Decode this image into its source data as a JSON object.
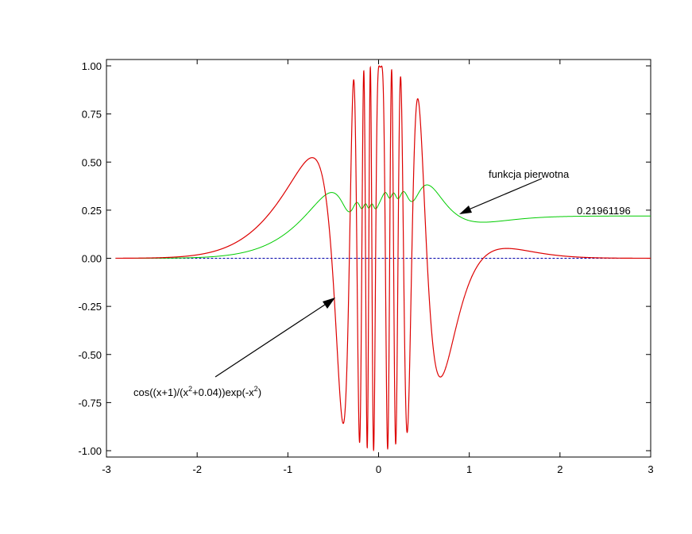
{
  "chart_data": {
    "type": "line",
    "title": "",
    "xlabel": "",
    "ylabel": "",
    "xlim": [
      -3,
      3
    ],
    "ylim": [
      -1.0,
      1.0
    ],
    "xticks": [
      "-3",
      "-2",
      "-1",
      "0",
      "1",
      "2",
      "3"
    ],
    "yticks": [
      "1.00",
      "0.75",
      "0.50",
      "0.25",
      "0.00",
      "-0.25",
      "-0.50",
      "-0.75",
      "-1.00"
    ],
    "grid": false,
    "legend": "none",
    "series": [
      {
        "expression": "cos((x+1)/(x^2+0.04))exp(-x^2)",
        "color": "#dd0000",
        "x_start": -2.9,
        "x_end": 3.0
      },
      {
        "label": "funkcja pierwotna",
        "color": "#00cc00",
        "x_start": -2.9,
        "x_end": 3.0,
        "final_value": "0.21961196"
      },
      {
        "y_value": 0.0,
        "color": "#0000aa",
        "style": "dashed"
      }
    ],
    "annotations": {
      "function_label_parts": [
        "cos((x+1)/(x",
        "2",
        "+0.04))exp(-x",
        "2",
        ")"
      ],
      "primitive_label": "funkcja pierwotna",
      "final_value_label": "0.21961196"
    }
  }
}
